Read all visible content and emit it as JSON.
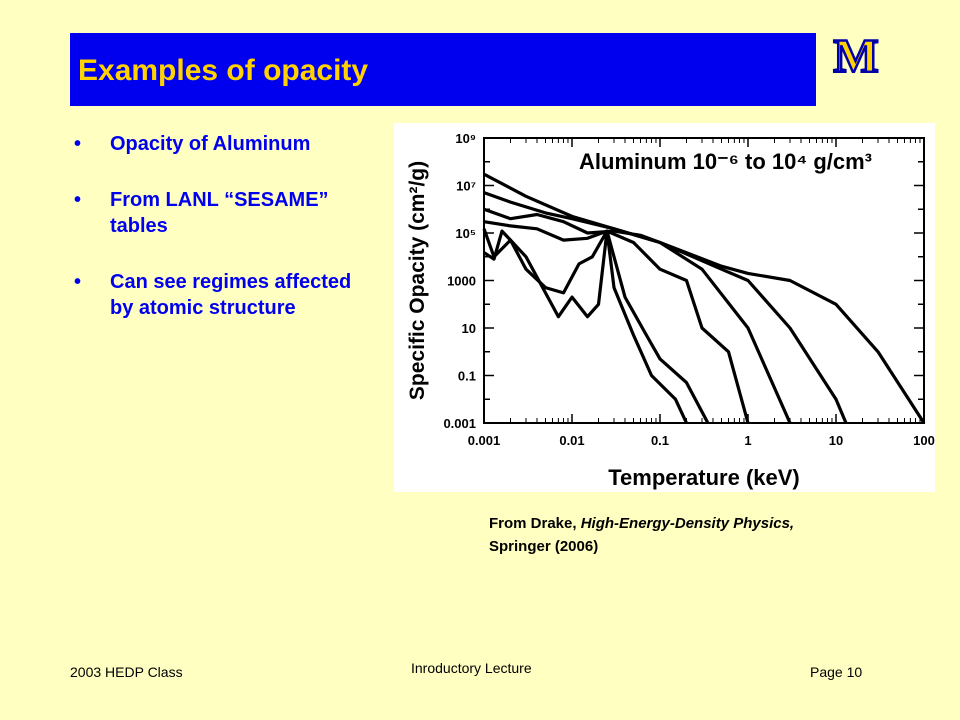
{
  "slide": {
    "title": "Examples of opacity",
    "bullets": [
      "Opacity of Aluminum",
      "From LANL “SESAME” tables",
      "Can see regimes affected by atomic structure"
    ],
    "bullet_glyph": "•",
    "credit": {
      "prefix": "From Drake, ",
      "book": "High-Energy-Density Physics,",
      "suffix": "Springer (2006)"
    },
    "footer": {
      "left": "2003 HEDP Class",
      "center": "Inroductory Lecture",
      "right": "Page 10"
    },
    "logo_letter": "M",
    "colors": {
      "background": "#ffffc2",
      "title_bar": "#0000ee",
      "title_text": "#ffd200",
      "bullet_text": "#0000ee",
      "logo_fill": "#ffd200",
      "logo_stroke": "#0000aa"
    }
  },
  "chart_data": {
    "type": "line",
    "title": "Aluminum 10⁻⁶ to 10⁴ g/cm³",
    "xlabel": "Temperature (keV)",
    "ylabel": "Specific Opacity (cm²/g)",
    "xscale": "log",
    "yscale": "log",
    "xlim": [
      0.001,
      100
    ],
    "ylim": [
      0.001,
      1000000000
    ],
    "x_ticks": [
      "0.001",
      "0.01",
      "0.1",
      "1",
      "10",
      "100"
    ],
    "y_ticks": [
      "0.001",
      "0.1",
      "10",
      "1000",
      "10⁵",
      "10⁷",
      "10⁹"
    ],
    "grid": false,
    "series": [
      {
        "points": [
          [
            0.001,
            30000000.0
          ],
          [
            0.003,
            3500000.0
          ],
          [
            0.01,
            500000.0
          ],
          [
            0.03,
            150000.0
          ],
          [
            0.1,
            40000.0
          ],
          [
            0.5,
            4000.0
          ],
          [
            1,
            2000
          ],
          [
            3,
            1000
          ],
          [
            10,
            100
          ],
          [
            30,
            1
          ],
          [
            100,
            0.001
          ]
        ]
      },
      {
        "points": [
          [
            0.001,
            5000000.0
          ],
          [
            0.002,
            2000000.0
          ],
          [
            0.005,
            700000.0
          ],
          [
            0.01,
            400000.0
          ],
          [
            0.03,
            150000.0
          ],
          [
            0.1,
            40000.0
          ],
          [
            0.5,
            3000.0
          ],
          [
            1,
            1000
          ],
          [
            3,
            10
          ],
          [
            10,
            0.01
          ],
          [
            13,
            0.001
          ]
        ]
      },
      {
        "points": [
          [
            0.001,
            1000000.0
          ],
          [
            0.002,
            400000.0
          ],
          [
            0.004,
            600000.0
          ],
          [
            0.008,
            300000.0
          ],
          [
            0.015,
            100000.0
          ],
          [
            0.03,
            120000.0
          ],
          [
            0.06,
            80000.0
          ],
          [
            0.1,
            40000.0
          ],
          [
            0.3,
            3000.0
          ],
          [
            1,
            10
          ],
          [
            3,
            0.001
          ]
        ]
      },
      {
        "points": [
          [
            0.001,
            300000.0
          ],
          [
            0.002,
            200000.0
          ],
          [
            0.004,
            150000.0
          ],
          [
            0.008,
            50000.0
          ],
          [
            0.015,
            60000.0
          ],
          [
            0.025,
            120000.0
          ],
          [
            0.05,
            40000.0
          ],
          [
            0.1,
            3000.0
          ],
          [
            0.2,
            1000
          ],
          [
            0.3,
            10
          ],
          [
            0.6,
            1
          ],
          [
            1,
            0.001
          ]
        ]
      },
      {
        "points": [
          [
            0.001,
            150000.0
          ],
          [
            0.0013,
            10000.0
          ],
          [
            0.002,
            50000.0
          ],
          [
            0.003,
            3000.0
          ],
          [
            0.005,
            500
          ],
          [
            0.008,
            300
          ],
          [
            0.012,
            5000.0
          ],
          [
            0.017,
            10000.0
          ],
          [
            0.025,
            120000.0
          ],
          [
            0.04,
            200
          ],
          [
            0.07,
            5
          ],
          [
            0.1,
            0.5
          ],
          [
            0.2,
            0.05
          ],
          [
            0.35,
            0.001
          ]
        ]
      },
      {
        "points": [
          [
            0.001,
            15000.0
          ],
          [
            0.0013,
            8000.0
          ],
          [
            0.0016,
            120000.0
          ],
          [
            0.002,
            50000.0
          ],
          [
            0.003,
            10000.0
          ],
          [
            0.005,
            300
          ],
          [
            0.007,
            30
          ],
          [
            0.01,
            200
          ],
          [
            0.015,
            30
          ],
          [
            0.02,
            100
          ],
          [
            0.025,
            120000.0
          ],
          [
            0.03,
            500
          ],
          [
            0.05,
            5
          ],
          [
            0.08,
            0.1
          ],
          [
            0.15,
            0.01
          ],
          [
            0.2,
            0.001
          ]
        ]
      }
    ]
  }
}
